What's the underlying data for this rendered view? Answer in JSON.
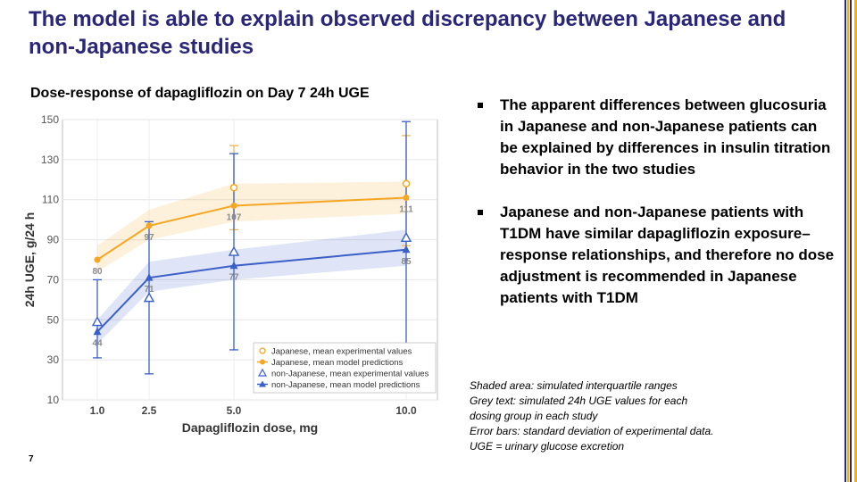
{
  "slide": {
    "title": "The model is able to explain observed discrepancy between Japanese and non-Japanese studies",
    "chart_title": "Dose-response of dapagliflozin on Day 7 24h UGE",
    "page_number": "7",
    "bullets": [
      "The apparent differences between glucosuria in Japanese and non-Japanese patients can be explained by differences in insulin titration behavior in the two studies",
      "Japanese and non-Japanese patients with T1DM have similar dapagliflozin exposure–response relationships, and therefore no dose adjustment is recommended in Japanese patients with T1DM"
    ],
    "footnotes": [
      "Shaded area: simulated interquartile ranges",
      "Grey text: simulated 24h UGE values for each",
      "dosing group in each study",
      "Error bars: standard deviation of experimental data.",
      "UGE = urinary glucose excretion"
    ],
    "colors": {
      "title": "#2a2778",
      "japanese": "#f5a623",
      "non_japanese": "#3a5fc8"
    }
  },
  "chart_data": {
    "type": "line",
    "xlabel": "Dapagliflozin dose, mg",
    "ylabel": "24h UGE, g/24 h",
    "categories": [
      "1.0",
      "2.5",
      "5.0",
      "10.0"
    ],
    "y_ticks": [
      10,
      30,
      50,
      70,
      90,
      110,
      130,
      150
    ],
    "ylim": [
      10,
      150
    ],
    "legend_position": "bottom-right",
    "legend": [
      "Japanese, mean experimental values",
      "Japanese, mean model predictions",
      "non-Japanese, mean experimental values",
      "non-Japanese, mean model predictions"
    ],
    "series": [
      {
        "name": "Japanese, mean model predictions",
        "group": "japanese",
        "values": [
          80,
          97,
          107,
          111
        ],
        "iqr_low": [
          74,
          90,
          99,
          103
        ],
        "iqr_high": [
          87,
          105,
          118,
          119
        ],
        "labels": [
          "80",
          "97",
          "107",
          "111"
        ]
      },
      {
        "name": "Japanese, mean experimental values",
        "group": "japanese_exp",
        "values": [
          null,
          null,
          116,
          118
        ],
        "err_low": [
          null,
          null,
          95,
          87
        ],
        "err_high": [
          null,
          null,
          137,
          142
        ]
      },
      {
        "name": "non-Japanese, mean model predictions",
        "group": "non_japanese",
        "values": [
          44,
          71,
          77,
          85
        ],
        "iqr_low": [
          38,
          64,
          70,
          77
        ],
        "iqr_high": [
          50,
          79,
          85,
          95
        ],
        "labels": [
          "44",
          "71",
          "77",
          "85"
        ]
      },
      {
        "name": "non-Japanese, mean experimental values",
        "group": "non_japanese_exp",
        "values": [
          49,
          61,
          84,
          91
        ],
        "err_low": [
          31,
          23,
          35,
          25
        ],
        "err_high": [
          70,
          99,
          133,
          149
        ]
      }
    ]
  }
}
